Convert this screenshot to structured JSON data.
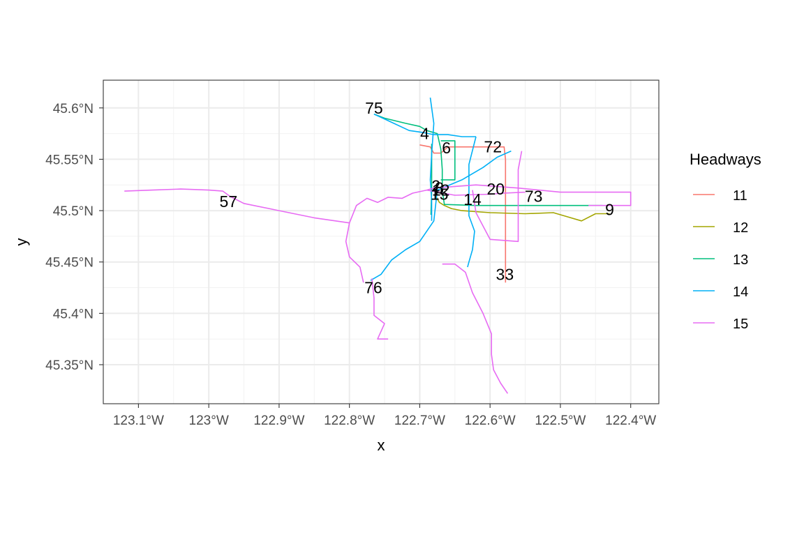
{
  "chart_data": {
    "type": "map",
    "xlabel": "x",
    "ylabel": "y",
    "x_ticks": [
      {
        "value": -123.1,
        "label": "123.1°W"
      },
      {
        "value": -123.0,
        "label": "123°W"
      },
      {
        "value": -122.9,
        "label": "122.9°W"
      },
      {
        "value": -122.8,
        "label": "122.8°W"
      },
      {
        "value": -122.7,
        "label": "122.7°W"
      },
      {
        "value": -122.6,
        "label": "122.6°W"
      },
      {
        "value": -122.5,
        "label": "122.5°W"
      },
      {
        "value": -122.4,
        "label": "122.4°W"
      }
    ],
    "y_ticks": [
      {
        "value": 45.35,
        "label": "45.35°N"
      },
      {
        "value": 45.4,
        "label": "45.4°N"
      },
      {
        "value": 45.45,
        "label": "45.45°N"
      },
      {
        "value": 45.5,
        "label": "45.5°N"
      },
      {
        "value": 45.55,
        "label": "45.55°N"
      },
      {
        "value": 45.6,
        "label": "45.6°N"
      }
    ],
    "xlim": [
      -123.15,
      -122.36
    ],
    "ylim": [
      45.312,
      45.627
    ],
    "grid": true,
    "legend": {
      "title": "Headways",
      "placement": "right",
      "entries": [
        {
          "label": "11",
          "color": "#F8766D"
        },
        {
          "label": "12",
          "color": "#A3A500"
        },
        {
          "label": "13",
          "color": "#00BF7D"
        },
        {
          "label": "14",
          "color": "#00B0F6"
        },
        {
          "label": "15",
          "color": "#E76BF3"
        }
      ]
    },
    "series": [
      {
        "headway": "11",
        "color": "#F8766D",
        "routes": [
          {
            "points": [
              [
                -122.7,
                45.564
              ],
              [
                -122.685,
                45.562
              ],
              [
                -122.68,
                45.556
              ],
              [
                -122.67,
                45.556
              ],
              [
                -122.66,
                45.562
              ],
              [
                -122.63,
                45.562
              ],
              [
                -122.58,
                45.562
              ],
              [
                -122.578,
                45.55
              ],
              [
                -122.578,
                45.5
              ],
              [
                -122.578,
                45.45
              ],
              [
                -122.578,
                45.43
              ]
            ]
          }
        ]
      },
      {
        "headway": "12",
        "color": "#A3A500",
        "routes": [
          {
            "points": [
              [
                -122.678,
                45.515
              ],
              [
                -122.672,
                45.508
              ],
              [
                -122.665,
                45.505
              ],
              [
                -122.655,
                45.502
              ],
              [
                -122.64,
                45.5
              ],
              [
                -122.6,
                45.498
              ],
              [
                -122.55,
                45.497
              ],
              [
                -122.51,
                45.498
              ],
              [
                -122.49,
                45.494
              ],
              [
                -122.47,
                45.49
              ],
              [
                -122.45,
                45.497
              ],
              [
                -122.43,
                45.497
              ]
            ]
          }
        ]
      },
      {
        "headway": "13",
        "color": "#00BF7D",
        "routes": [
          {
            "points": [
              [
                -122.765,
                45.594
              ],
              [
                -122.75,
                45.59
              ],
              [
                -122.72,
                45.585
              ],
              [
                -122.7,
                45.582
              ],
              [
                -122.69,
                45.578
              ],
              [
                -122.675,
                45.575
              ],
              [
                -122.67,
                45.56
              ],
              [
                -122.668,
                45.54
              ],
              [
                -122.668,
                45.52
              ],
              [
                -122.665,
                45.506
              ],
              [
                -122.62,
                45.505
              ],
              [
                -122.55,
                45.505
              ],
              [
                -122.5,
                45.505
              ],
              [
                -122.44,
                45.505
              ]
            ]
          },
          {
            "points": [
              [
                -122.683,
                45.565
              ],
              [
                -122.683,
                45.52
              ],
              [
                -122.684,
                45.496
              ]
            ]
          },
          {
            "points": [
              [
                -122.67,
                45.568
              ],
              [
                -122.65,
                45.568
              ],
              [
                -122.65,
                45.53
              ],
              [
                -122.67,
                45.53
              ]
            ]
          }
        ]
      },
      {
        "headway": "14",
        "color": "#00B0F6",
        "routes": [
          {
            "points": [
              [
                -122.765,
                45.594
              ],
              [
                -122.74,
                45.586
              ],
              [
                -122.715,
                45.578
              ],
              [
                -122.695,
                45.576
              ],
              [
                -122.68,
                45.574
              ],
              [
                -122.66,
                45.574
              ],
              [
                -122.64,
                45.572
              ],
              [
                -122.62,
                45.572
              ]
            ]
          },
          {
            "points": [
              [
                -122.685,
                45.61
              ],
              [
                -122.68,
                45.585
              ],
              [
                -122.683,
                45.555
              ],
              [
                -122.685,
                45.53
              ],
              [
                -122.683,
                45.51
              ],
              [
                -122.683,
                45.49
              ]
            ]
          },
          {
            "points": [
              [
                -122.62,
                45.572
              ],
              [
                -122.63,
                45.545
              ],
              [
                -122.63,
                45.52
              ],
              [
                -122.63,
                45.495
              ],
              [
                -122.622,
                45.48
              ],
              [
                -122.625,
                45.462
              ],
              [
                -122.63,
                45.45
              ],
              [
                -122.632,
                45.445
              ]
            ]
          },
          {
            "points": [
              [
                -122.675,
                45.52
              ],
              [
                -122.64,
                45.53
              ],
              [
                -122.61,
                45.542
              ],
              [
                -122.59,
                45.552
              ],
              [
                -122.57,
                45.558
              ]
            ]
          },
          {
            "points": [
              [
                -122.675,
                45.52
              ],
              [
                -122.68,
                45.49
              ],
              [
                -122.7,
                45.47
              ],
              [
                -122.72,
                45.462
              ],
              [
                -122.74,
                45.452
              ],
              [
                -122.755,
                45.438
              ],
              [
                -122.77,
                45.432
              ]
            ]
          }
        ]
      },
      {
        "headway": "15",
        "color": "#E76BF3",
        "routes": [
          {
            "points": [
              [
                -123.12,
                45.519
              ],
              [
                -123.08,
                45.52
              ],
              [
                -123.04,
                45.521
              ],
              [
                -123.0,
                45.52
              ],
              [
                -122.98,
                45.519
              ],
              [
                -122.97,
                45.514
              ],
              [
                -122.95,
                45.507
              ],
              [
                -122.9,
                45.5
              ],
              [
                -122.85,
                45.493
              ],
              [
                -122.8,
                45.488
              ]
            ]
          },
          {
            "points": [
              [
                -122.8,
                45.488
              ],
              [
                -122.805,
                45.47
              ],
              [
                -122.8,
                45.455
              ],
              [
                -122.785,
                45.445
              ],
              [
                -122.78,
                45.43
              ]
            ]
          },
          {
            "points": [
              [
                -122.8,
                45.488
              ],
              [
                -122.79,
                45.505
              ],
              [
                -122.775,
                45.512
              ],
              [
                -122.76,
                45.508
              ],
              [
                -122.745,
                45.513
              ],
              [
                -122.725,
                45.512
              ],
              [
                -122.71,
                45.517
              ],
              [
                -122.69,
                45.52
              ],
              [
                -122.68,
                45.522
              ]
            ]
          },
          {
            "points": [
              [
                -122.768,
                45.434
              ],
              [
                -122.765,
                45.415
              ],
              [
                -122.765,
                45.398
              ],
              [
                -122.75,
                45.39
              ],
              [
                -122.76,
                45.375
              ],
              [
                -122.745,
                45.375
              ]
            ]
          },
          {
            "points": [
              [
                -122.68,
                45.522
              ],
              [
                -122.62,
                45.525
              ],
              [
                -122.56,
                45.522
              ],
              [
                -122.5,
                45.518
              ],
              [
                -122.4,
                45.518
              ],
              [
                -122.4,
                45.505
              ],
              [
                -122.46,
                45.505
              ]
            ]
          },
          {
            "points": [
              [
                -122.69,
                45.52
              ],
              [
                -122.65,
                45.515
              ],
              [
                -122.6,
                45.516
              ],
              [
                -122.58,
                45.517
              ],
              [
                -122.55,
                45.518
              ]
            ]
          },
          {
            "points": [
              [
                -122.555,
                45.558
              ],
              [
                -122.56,
                45.54
              ],
              [
                -122.56,
                45.51
              ],
              [
                -122.56,
                45.47
              ],
              [
                -122.6,
                45.472
              ],
              [
                -122.62,
                45.498
              ],
              [
                -122.625,
                45.52
              ]
            ]
          },
          {
            "points": [
              [
                -122.668,
                45.448
              ],
              [
                -122.65,
                45.448
              ],
              [
                -122.635,
                45.44
              ],
              [
                -122.625,
                45.42
              ],
              [
                -122.61,
                45.4
              ],
              [
                -122.598,
                45.38
              ],
              [
                -122.598,
                45.36
              ],
              [
                -122.595,
                45.345
              ],
              [
                -122.585,
                45.332
              ],
              [
                -122.575,
                45.322
              ]
            ]
          }
        ]
      }
    ],
    "labels": [
      {
        "text": "75",
        "lon": -122.765,
        "lat": 45.6
      },
      {
        "text": "4",
        "lon": -122.693,
        "lat": 45.575
      },
      {
        "text": "6",
        "lon": -122.662,
        "lat": 45.561
      },
      {
        "text": "72",
        "lon": -122.596,
        "lat": 45.562
      },
      {
        "text": "2",
        "lon": -122.677,
        "lat": 45.524
      },
      {
        "text": "8",
        "lon": -122.672,
        "lat": 45.522
      },
      {
        "text": "12",
        "lon": -122.67,
        "lat": 45.52
      },
      {
        "text": "15",
        "lon": -122.672,
        "lat": 45.516
      },
      {
        "text": "20",
        "lon": -122.592,
        "lat": 45.521
      },
      {
        "text": "14",
        "lon": -122.625,
        "lat": 45.511
      },
      {
        "text": "73",
        "lon": -122.538,
        "lat": 45.514
      },
      {
        "text": "9",
        "lon": -122.43,
        "lat": 45.501
      },
      {
        "text": "57",
        "lon": -122.972,
        "lat": 45.509
      },
      {
        "text": "33",
        "lon": -122.579,
        "lat": 45.438
      },
      {
        "text": "76",
        "lon": -122.766,
        "lat": 45.425
      }
    ]
  }
}
